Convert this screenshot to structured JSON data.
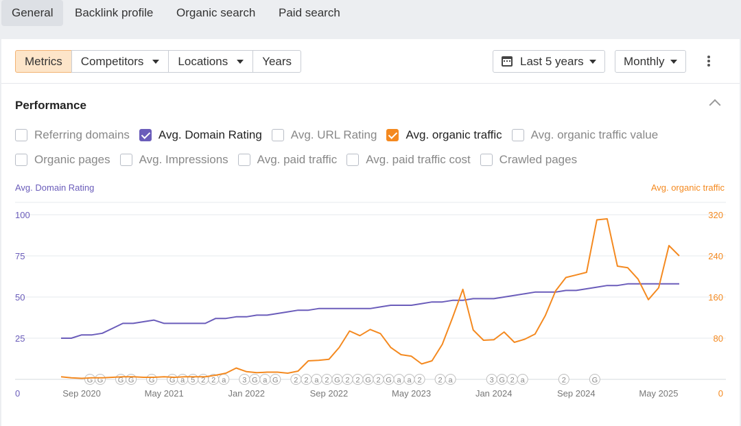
{
  "tabs": [
    {
      "label": "General",
      "active": true
    },
    {
      "label": "Backlink profile"
    },
    {
      "label": "Organic search"
    },
    {
      "label": "Paid search"
    }
  ],
  "toolbar": {
    "segments": [
      "Metrics",
      "Competitors",
      "Locations",
      "Years"
    ],
    "range_label": "Last 5 years",
    "interval_label": "Monthly"
  },
  "performance": {
    "title": "Performance",
    "checkboxes_row1": [
      {
        "label": "Referring domains",
        "checked": false
      },
      {
        "label": "Avg. Domain Rating",
        "checked": true,
        "color": "#6a5cba"
      },
      {
        "label": "Avg. URL Rating",
        "checked": false
      },
      {
        "label": "Avg. organic traffic",
        "checked": true,
        "color": "#f4891f"
      },
      {
        "label": "Avg. organic traffic value",
        "checked": false
      }
    ],
    "checkboxes_row2": [
      {
        "label": "Organic pages",
        "checked": false
      },
      {
        "label": "Avg. Impressions",
        "checked": false
      },
      {
        "label": "Avg. paid traffic",
        "checked": false
      },
      {
        "label": "Avg. paid traffic cost",
        "checked": false
      },
      {
        "label": "Crawled pages",
        "checked": false
      }
    ]
  },
  "colors": {
    "dr": "#6a5cba",
    "traffic": "#f4891f",
    "grid": "#e6e8ec",
    "green": "#3cb371"
  },
  "chart_data": {
    "type": "line",
    "left_axis_label": "Avg. Domain Rating",
    "right_axis_label": "Avg. organic traffic",
    "left_ticks": [
      "0",
      "25",
      "50",
      "75",
      "100"
    ],
    "right_ticks": [
      "0",
      "80",
      "160",
      "240",
      "320"
    ],
    "left_range": [
      0,
      100
    ],
    "right_range": [
      0,
      320
    ],
    "x_tick_labels": [
      "Sep 2020",
      "May 2021",
      "Jan 2022",
      "Sep 2022",
      "May 2023",
      "Jan 2024",
      "Sep 2024",
      "May 2025"
    ],
    "x_tick_index": [
      2,
      10,
      18,
      26,
      34,
      42,
      50,
      58
    ],
    "months": 61,
    "series": [
      {
        "name": "Avg. Domain Rating",
        "axis": "left",
        "values": [
          25,
          25,
          27,
          27,
          28,
          31,
          34,
          34,
          35,
          36,
          34,
          34,
          34,
          34,
          34,
          37,
          37,
          38,
          38,
          39,
          39,
          40,
          41,
          42,
          42,
          43,
          43,
          43,
          43,
          43,
          43,
          44,
          45,
          45,
          45,
          46,
          47,
          47,
          48,
          48,
          49,
          49,
          49,
          50,
          51,
          52,
          53,
          53,
          53,
          54,
          54,
          55,
          56,
          57,
          57,
          58,
          58,
          58,
          58,
          58,
          58
        ]
      },
      {
        "name": "Avg. organic traffic",
        "axis": "right",
        "values": [
          5,
          3,
          2,
          3,
          3,
          4,
          5,
          5,
          4,
          4,
          5,
          4,
          5,
          5,
          5,
          8,
          12,
          22,
          15,
          13,
          14,
          14,
          12,
          16,
          36,
          37,
          39,
          62,
          94,
          85,
          97,
          89,
          62,
          48,
          45,
          30,
          36,
          68,
          120,
          175,
          96,
          76,
          77,
          92,
          72,
          78,
          88,
          124,
          172,
          198,
          203,
          208,
          310,
          312,
          220,
          217,
          195,
          155,
          178,
          260,
          240
        ]
      }
    ],
    "annotations": [
      "G",
      "G",
      "G",
      "G",
      "G",
      "G",
      "a",
      "5",
      "2",
      "2",
      "a",
      "3",
      "G",
      "a",
      "G",
      "2",
      "2",
      "a",
      "2",
      "G",
      "2",
      "2",
      "G",
      "2",
      "G",
      "a",
      "a",
      "2",
      "2",
      "a",
      "3",
      "G",
      "2",
      "a",
      "2",
      "G"
    ]
  }
}
